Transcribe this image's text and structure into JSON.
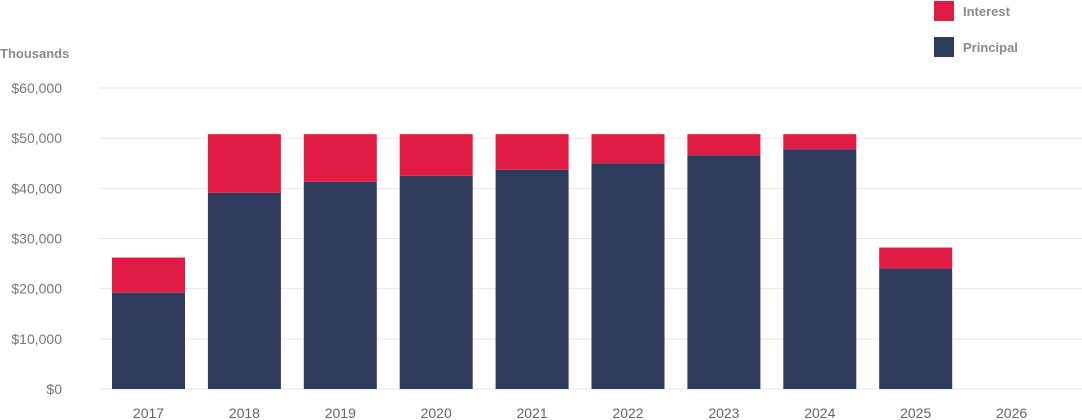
{
  "chart_data": {
    "type": "bar",
    "stacked": true,
    "ylabel": "Thousands",
    "ylim": [
      0,
      60000
    ],
    "yticks": [
      0,
      10000,
      20000,
      30000,
      40000,
      50000,
      60000
    ],
    "ytick_labels": [
      "$0",
      "$10,000",
      "$20,000",
      "$30,000",
      "$40,000",
      "$50,000",
      "$60,000"
    ],
    "categories": [
      "2017",
      "2018",
      "2019",
      "2020",
      "2021",
      "2022",
      "2023",
      "2024",
      "2025",
      "2026"
    ],
    "grid": true,
    "legend": "top-right",
    "series": [
      {
        "name": "Principal",
        "color": "#2e3b5c",
        "values": [
          19200,
          39100,
          41300,
          42500,
          43700,
          45000,
          46600,
          47800,
          24000,
          0
        ]
      },
      {
        "name": "Interest",
        "color": "#e01c44",
        "values": [
          7000,
          11700,
          9500,
          8300,
          7100,
          5800,
          4200,
          3000,
          4200,
          0
        ]
      }
    ]
  }
}
